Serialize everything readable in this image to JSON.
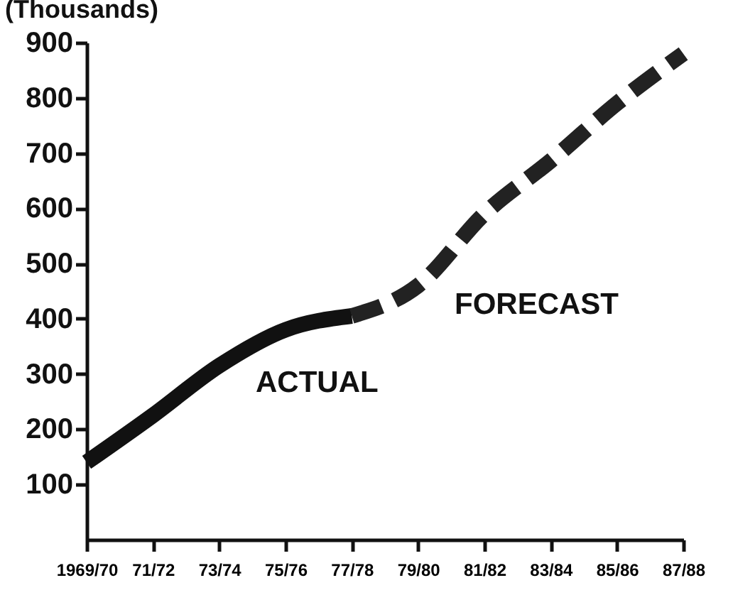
{
  "chart_data": {
    "type": "line",
    "ylabel": "(Thousands)",
    "categories": [
      "1969/70",
      "71/72",
      "73/74",
      "75/76",
      "77/78",
      "79/80",
      "81/82",
      "83/84",
      "85/86",
      "87/88"
    ],
    "series": [
      {
        "name": "ACTUAL",
        "color": "#111111",
        "line_style": "solid",
        "values": [
          140,
          225,
          315,
          380,
          405,
          null,
          null,
          null,
          null,
          null
        ]
      },
      {
        "name": "FORECAST",
        "color": "#222222",
        "line_style": "dashed",
        "values": [
          null,
          null,
          null,
          null,
          405,
          460,
          590,
          686,
          790,
          880
        ]
      }
    ],
    "ylim": [
      0,
      900
    ],
    "yticks": [
      100,
      200,
      300,
      400,
      500,
      600,
      700,
      800,
      900
    ],
    "marker": "none"
  }
}
